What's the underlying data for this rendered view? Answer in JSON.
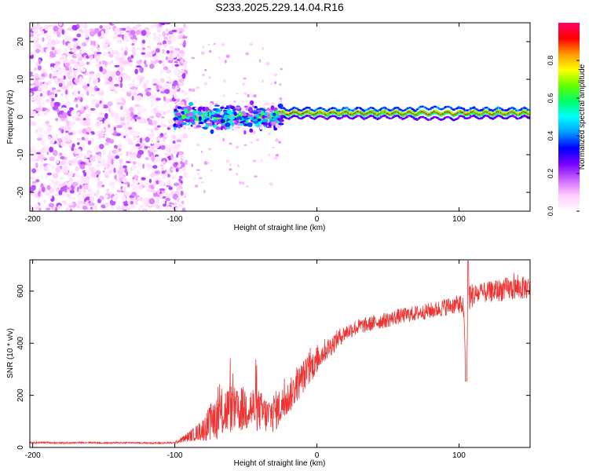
{
  "title": "S233.2025.229.14.04.R16",
  "chart_data": [
    {
      "type": "heatmap",
      "xlabel": "Height of straight line (km)",
      "ylabel": "Frequency (Hz)",
      "xlim": [
        -202,
        150
      ],
      "ylim": [
        -25,
        25
      ],
      "x_ticks": [
        -200,
        -100,
        0,
        100
      ],
      "y_ticks": [
        -20,
        -10,
        0,
        10,
        20
      ],
      "colorbar": {
        "label": "Normalized spectral amplitude",
        "range": [
          0,
          1
        ],
        "ticks": [
          0.0,
          0.2,
          0.4,
          0.6,
          0.8
        ],
        "colors": [
          "#ffffff",
          "#ffccff",
          "#cc66ff",
          "#7a00ff",
          "#0000ff",
          "#0099ff",
          "#00ffff",
          "#00ff66",
          "#66ff00",
          "#ffff00",
          "#ff9900",
          "#ff0000",
          "#ff0066"
        ]
      },
      "regions": [
        {
          "x_range": [
            -202,
            -100
          ],
          "freq_range": [
            -25,
            25
          ],
          "amplitude": "0.05-0.20 (scattered noise)"
        },
        {
          "x_range": [
            -100,
            -25
          ],
          "freq_range": [
            -5,
            5
          ],
          "amplitude": "0.2-0.6"
        },
        {
          "x_range": [
            -25,
            150
          ],
          "freq_center": 1,
          "amplitude": "0.8-1.0 (narrow ridge)"
        }
      ]
    },
    {
      "type": "line",
      "xlabel": "Height of straight line (km)",
      "ylabel": "SNR (10 * v/v)",
      "xlim": [
        -202,
        150
      ],
      "ylim": [
        0,
        720
      ],
      "x_ticks": [
        -200,
        -100,
        0,
        100
      ],
      "y_ticks": [
        0,
        200,
        400,
        600
      ],
      "color": "#ee3333",
      "series": [
        {
          "x": [
            -202,
            -190,
            -180,
            -170,
            -160,
            -150,
            -140,
            -130,
            -120,
            -110,
            -100,
            -95,
            -90,
            -85,
            -80,
            -75,
            -70,
            -65,
            -60,
            -55,
            -50,
            -45,
            -40,
            -35,
            -30,
            -25,
            -20,
            -15,
            -10,
            -5,
            0,
            5,
            10,
            15,
            20,
            25,
            30,
            35,
            40,
            45,
            50,
            55,
            60,
            65,
            70,
            75,
            80,
            85,
            90,
            95,
            100,
            103,
            105,
            107,
            110,
            115,
            120,
            125,
            130,
            135,
            140,
            145,
            150
          ],
          "y": [
            18,
            19,
            17,
            18,
            19,
            17,
            18,
            18,
            17,
            17,
            18,
            30,
            42,
            55,
            70,
            95,
            120,
            140,
            150,
            135,
            155,
            150,
            140,
            120,
            135,
            160,
            190,
            230,
            270,
            300,
            340,
            370,
            390,
            420,
            440,
            455,
            465,
            470,
            478,
            485,
            490,
            500,
            505,
            510,
            515,
            520,
            525,
            530,
            540,
            545,
            550,
            545,
            290,
            580,
            585,
            590,
            595,
            600,
            605,
            608,
            610,
            612,
            615
          ],
          "noise": [
            3,
            3,
            3,
            3,
            3,
            3,
            3,
            3,
            3,
            3,
            4,
            12,
            20,
            30,
            45,
            70,
            90,
            100,
            95,
            80,
            95,
            90,
            80,
            70,
            80,
            70,
            65,
            65,
            65,
            60,
            55,
            45,
            40,
            35,
            32,
            32,
            30,
            30,
            30,
            30,
            30,
            30,
            30,
            30,
            30,
            30,
            32,
            32,
            35,
            35,
            35,
            35,
            20,
            60,
            45,
            40,
            40,
            42,
            45,
            45,
            45,
            45,
            45
          ]
        }
      ]
    }
  ]
}
